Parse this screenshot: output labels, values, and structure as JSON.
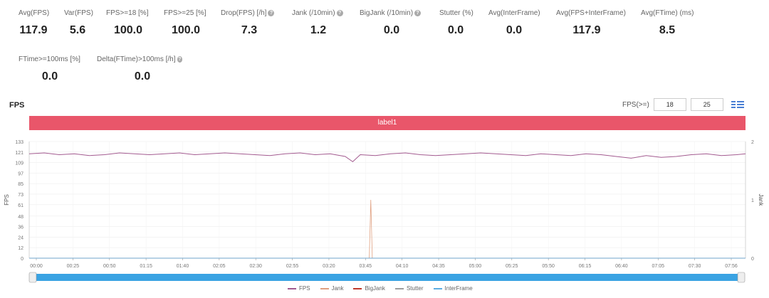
{
  "metrics_row1": [
    {
      "label": "Avg(FPS)",
      "value": "117.9",
      "help": false
    },
    {
      "label": "Var(FPS)",
      "value": "5.6",
      "help": false
    },
    {
      "label": "FPS>=18 [%]",
      "value": "100.0",
      "help": false
    },
    {
      "label": "FPS>=25 [%]",
      "value": "100.0",
      "help": false
    },
    {
      "label": "Drop(FPS) [/h]",
      "value": "7.3",
      "help": true
    },
    {
      "label": "Jank (/10min)",
      "value": "1.2",
      "help": true
    },
    {
      "label": "BigJank (/10min)",
      "value": "0.0",
      "help": true
    },
    {
      "label": "Stutter (%)",
      "value": "0.0",
      "help": false
    },
    {
      "label": "Avg(InterFrame)",
      "value": "0.0",
      "help": false
    },
    {
      "label": "Avg(FPS+InterFrame)",
      "value": "117.9",
      "help": false
    },
    {
      "label": "Avg(FTime) (ms)",
      "value": "8.5",
      "help": false
    }
  ],
  "metrics_row2": [
    {
      "label": "FTime>=100ms [%]",
      "value": "0.0",
      "help": false
    },
    {
      "label": "Delta(FTime)>100ms [/h]",
      "value": "0.0",
      "help": true
    }
  ],
  "chart_title": "FPS",
  "fps_filter": {
    "label": "FPS(>=)",
    "value1": "18",
    "value2": "25"
  },
  "banner_label": "label1",
  "legend": [
    {
      "name": "FPS",
      "color": "#a25a8f"
    },
    {
      "name": "Jank",
      "color": "#e0a080"
    },
    {
      "name": "BigJank",
      "color": "#c0392b"
    },
    {
      "name": "Stutter",
      "color": "#9e9e9e"
    },
    {
      "name": "InterFrame",
      "color": "#5dade2"
    }
  ],
  "chart_data": {
    "type": "line",
    "ylabel": "FPS",
    "y2label": "Jank",
    "ylim": [
      0,
      133
    ],
    "y_ticks": [
      0,
      12,
      24,
      36,
      48,
      61,
      73,
      85,
      97,
      109,
      121,
      133
    ],
    "y2lim": [
      0,
      2
    ],
    "y2_ticks": [
      0,
      1,
      2
    ],
    "x_ticks": [
      "00:00",
      "00:25",
      "00:50",
      "01:15",
      "01:40",
      "02:05",
      "02:30",
      "02:55",
      "03:20",
      "03:45",
      "04:10",
      "04:35",
      "05:00",
      "05:25",
      "05:50",
      "06:15",
      "06:40",
      "07:05",
      "07:30",
      "07:56"
    ],
    "x_range_seconds": [
      0,
      476
    ],
    "grid": true,
    "legend_position": "bottom",
    "series": [
      {
        "name": "FPS",
        "color": "#a25a8f",
        "x": [
          0,
          10,
          20,
          30,
          40,
          50,
          60,
          70,
          80,
          90,
          100,
          110,
          120,
          130,
          140,
          150,
          160,
          170,
          180,
          190,
          200,
          210,
          215,
          220,
          230,
          240,
          250,
          260,
          270,
          280,
          290,
          300,
          310,
          320,
          330,
          340,
          350,
          360,
          370,
          380,
          390,
          400,
          410,
          420,
          430,
          440,
          450,
          460,
          470,
          476
        ],
        "values": [
          119,
          120,
          118,
          119,
          117,
          118,
          120,
          119,
          118,
          119,
          120,
          118,
          119,
          120,
          119,
          118,
          117,
          119,
          120,
          118,
          119,
          116,
          110,
          118,
          117,
          119,
          120,
          118,
          117,
          118,
          119,
          120,
          119,
          118,
          117,
          119,
          118,
          117,
          119,
          118,
          116,
          114,
          117,
          115,
          116,
          118,
          119,
          117,
          118,
          119
        ]
      },
      {
        "name": "Jank",
        "color": "#e0a080",
        "x": [
          0,
          226,
          227,
          228,
          476
        ],
        "values": [
          0,
          0,
          1,
          0,
          0
        ]
      },
      {
        "name": "BigJank",
        "color": "#c0392b",
        "x": [
          0,
          476
        ],
        "values": [
          0,
          0
        ]
      },
      {
        "name": "Stutter",
        "color": "#9e9e9e",
        "x": [
          0,
          476
        ],
        "values": [
          0,
          0
        ]
      },
      {
        "name": "InterFrame",
        "color": "#5dade2",
        "x": [
          0,
          476
        ],
        "values": [
          0,
          0
        ]
      }
    ]
  }
}
